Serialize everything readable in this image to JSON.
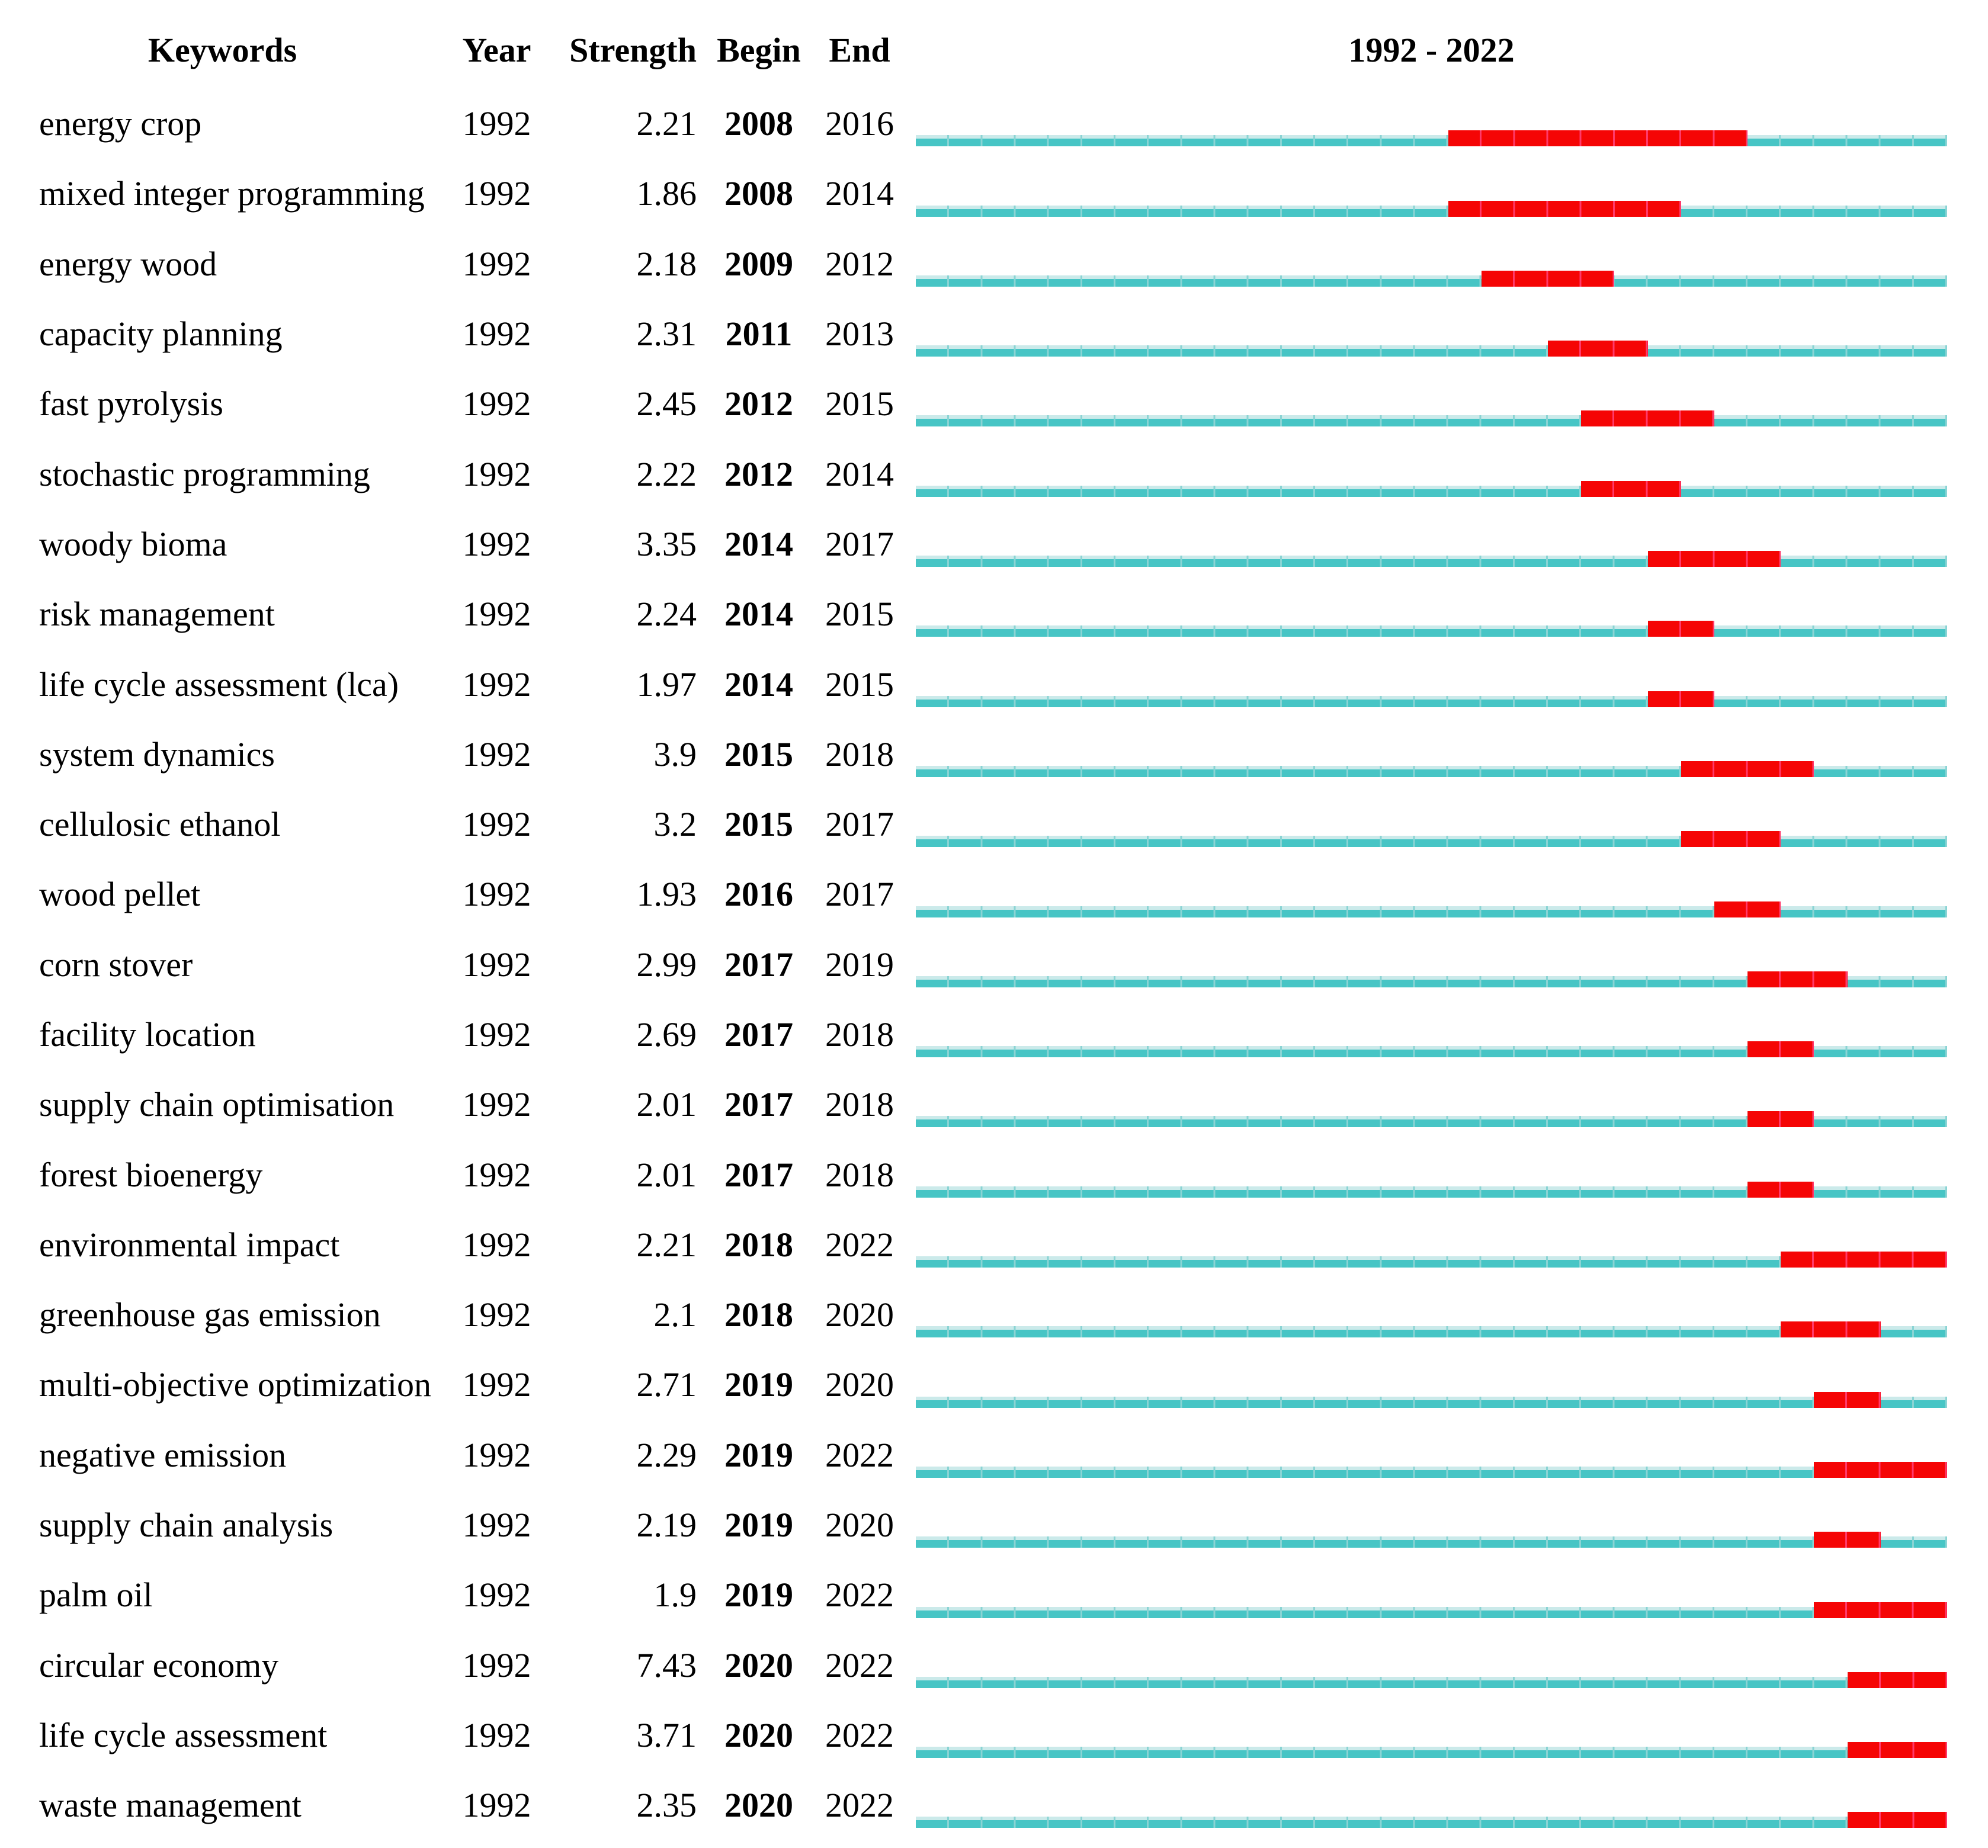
{
  "header": {
    "keywords": "Keywords",
    "year": "Year",
    "strength": "Strength",
    "begin": "Begin",
    "end": "End",
    "timeline": "1992 - 2022"
  },
  "colors": {
    "timeline_track": "#47C5C5",
    "timeline_track_top": "#CBEAEA",
    "timeline_separator": "#8AD4D4",
    "burst": "#F50505",
    "burst_separator": "#FF3A6B",
    "text": "#000000",
    "background": "#FFFFFF"
  },
  "chart_data": {
    "type": "table",
    "title": "1992 - 2022",
    "columns": [
      "Keywords",
      "Year",
      "Strength",
      "Begin",
      "End"
    ],
    "timeline": {
      "start": 1992,
      "end": 2022
    },
    "rows": [
      {
        "keyword": "energy crop",
        "year": "1992",
        "strength": "2.21",
        "begin": 2008,
        "end": 2016
      },
      {
        "keyword": "mixed integer programming",
        "year": "1992",
        "strength": "1.86",
        "begin": 2008,
        "end": 2014
      },
      {
        "keyword": "energy wood",
        "year": "1992",
        "strength": "2.18",
        "begin": 2009,
        "end": 2012
      },
      {
        "keyword": "capacity planning",
        "year": "1992",
        "strength": "2.31",
        "begin": 2011,
        "end": 2013
      },
      {
        "keyword": "fast pyrolysis",
        "year": "1992",
        "strength": "2.45",
        "begin": 2012,
        "end": 2015
      },
      {
        "keyword": "stochastic programming",
        "year": "1992",
        "strength": "2.22",
        "begin": 2012,
        "end": 2014
      },
      {
        "keyword": "woody bioma",
        "year": "1992",
        "strength": "3.35",
        "begin": 2014,
        "end": 2017
      },
      {
        "keyword": "risk management",
        "year": "1992",
        "strength": "2.24",
        "begin": 2014,
        "end": 2015
      },
      {
        "keyword": "life cycle assessment (lca)",
        "year": "1992",
        "strength": "1.97",
        "begin": 2014,
        "end": 2015
      },
      {
        "keyword": "system dynamics",
        "year": "1992",
        "strength": "3.9",
        "begin": 2015,
        "end": 2018
      },
      {
        "keyword": "cellulosic ethanol",
        "year": "1992",
        "strength": "3.2",
        "begin": 2015,
        "end": 2017
      },
      {
        "keyword": "wood pellet",
        "year": "1992",
        "strength": "1.93",
        "begin": 2016,
        "end": 2017
      },
      {
        "keyword": "corn stover",
        "year": "1992",
        "strength": "2.99",
        "begin": 2017,
        "end": 2019
      },
      {
        "keyword": "facility location",
        "year": "1992",
        "strength": "2.69",
        "begin": 2017,
        "end": 2018
      },
      {
        "keyword": "supply chain optimisation",
        "year": "1992",
        "strength": "2.01",
        "begin": 2017,
        "end": 2018
      },
      {
        "keyword": "forest bioenergy",
        "year": "1992",
        "strength": "2.01",
        "begin": 2017,
        "end": 2018
      },
      {
        "keyword": "environmental impact",
        "year": "1992",
        "strength": "2.21",
        "begin": 2018,
        "end": 2022
      },
      {
        "keyword": "greenhouse gas emission",
        "year": "1992",
        "strength": "2.1",
        "begin": 2018,
        "end": 2020
      },
      {
        "keyword": "multi-objective optimization",
        "year": "1992",
        "strength": "2.71",
        "begin": 2019,
        "end": 2020
      },
      {
        "keyword": "negative emission",
        "year": "1992",
        "strength": "2.29",
        "begin": 2019,
        "end": 2022
      },
      {
        "keyword": "supply chain analysis",
        "year": "1992",
        "strength": "2.19",
        "begin": 2019,
        "end": 2020
      },
      {
        "keyword": "palm oil",
        "year": "1992",
        "strength": "1.9",
        "begin": 2019,
        "end": 2022
      },
      {
        "keyword": "circular economy",
        "year": "1992",
        "strength": "7.43",
        "begin": 2020,
        "end": 2022
      },
      {
        "keyword": "life cycle assessment",
        "year": "1992",
        "strength": "3.71",
        "begin": 2020,
        "end": 2022
      },
      {
        "keyword": "waste management",
        "year": "1992",
        "strength": "2.35",
        "begin": 2020,
        "end": 2022
      }
    ]
  }
}
